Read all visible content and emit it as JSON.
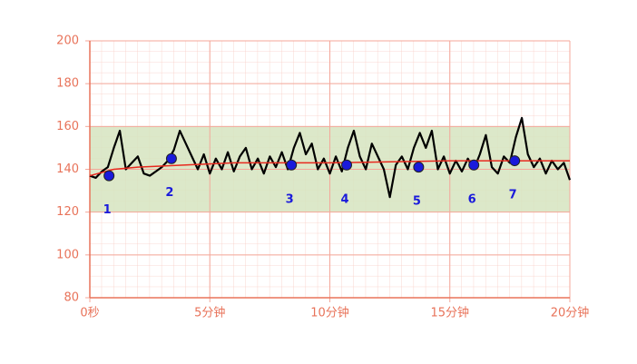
{
  "chart_data": {
    "type": "line",
    "x": [
      0,
      0.25,
      0.5,
      0.75,
      1,
      1.25,
      1.5,
      1.75,
      2,
      2.25,
      2.5,
      2.75,
      3,
      3.25,
      3.5,
      3.75,
      4,
      4.25,
      4.5,
      4.75,
      5,
      5.25,
      5.5,
      5.75,
      6,
      6.25,
      6.5,
      6.75,
      7,
      7.25,
      7.5,
      7.75,
      8,
      8.25,
      8.5,
      8.75,
      9,
      9.25,
      9.5,
      9.75,
      10,
      10.25,
      10.5,
      10.75,
      11,
      11.25,
      11.5,
      11.75,
      12,
      12.25,
      12.5,
      12.75,
      13,
      13.25,
      13.5,
      13.75,
      14,
      14.25,
      14.5,
      14.75,
      15,
      15.25,
      15.5,
      15.75,
      16,
      16.25,
      16.5,
      16.75,
      17,
      17.25,
      17.5,
      17.75,
      18,
      18.25,
      18.5,
      18.75,
      19,
      19.25,
      19.5,
      19.75,
      20
    ],
    "series": [
      {
        "color": "#000000",
        "values": [
          137,
          136,
          139,
          141,
          150,
          158,
          140,
          143,
          146,
          138,
          137,
          139,
          141,
          144,
          149,
          158,
          152,
          146,
          140,
          147,
          138,
          145,
          140,
          148,
          139,
          146,
          150,
          140,
          145,
          138,
          146,
          141,
          148,
          140,
          150,
          157,
          147,
          152,
          140,
          145,
          138,
          146,
          139,
          150,
          158,
          146,
          140,
          152,
          146,
          140,
          127,
          142,
          146,
          140,
          150,
          157,
          150,
          158,
          140,
          146,
          138,
          144,
          139,
          145,
          140,
          147,
          156,
          141,
          138,
          146,
          143,
          155,
          164,
          147,
          141,
          145,
          138,
          144,
          140,
          143,
          135
        ]
      }
    ],
    "baseline": {
      "color": "#e8281e",
      "x": [
        0,
        1,
        2,
        4,
        6,
        10,
        15,
        20
      ],
      "values": [
        137,
        140,
        141,
        142,
        143,
        143,
        144,
        144
      ]
    },
    "markers": {
      "color": "#1a1adb",
      "x": [
        0.8,
        3.4,
        8.4,
        10.7,
        13.7,
        16.0,
        17.7
      ],
      "values": [
        137,
        145,
        142,
        142,
        141,
        142,
        144
      ],
      "labels": [
        "1",
        "2",
        "3",
        "4",
        "5",
        "6",
        "7"
      ]
    },
    "band": [
      120,
      160
    ],
    "band_color": "#d6e4bf",
    "xlim": [
      0,
      20
    ],
    "xticks": [
      {
        "value": 0,
        "label": "0秒"
      },
      {
        "value": 5,
        "label": "5分钟"
      },
      {
        "value": 10,
        "label": "10分钟"
      },
      {
        "value": 15,
        "label": "15分钟"
      },
      {
        "value": 20,
        "label": "20分钟"
      }
    ],
    "ylim": [
      80,
      200
    ],
    "yticks": [
      80,
      100,
      120,
      140,
      160,
      180,
      200
    ],
    "grid": true,
    "grid_color": "#f4a79a"
  }
}
